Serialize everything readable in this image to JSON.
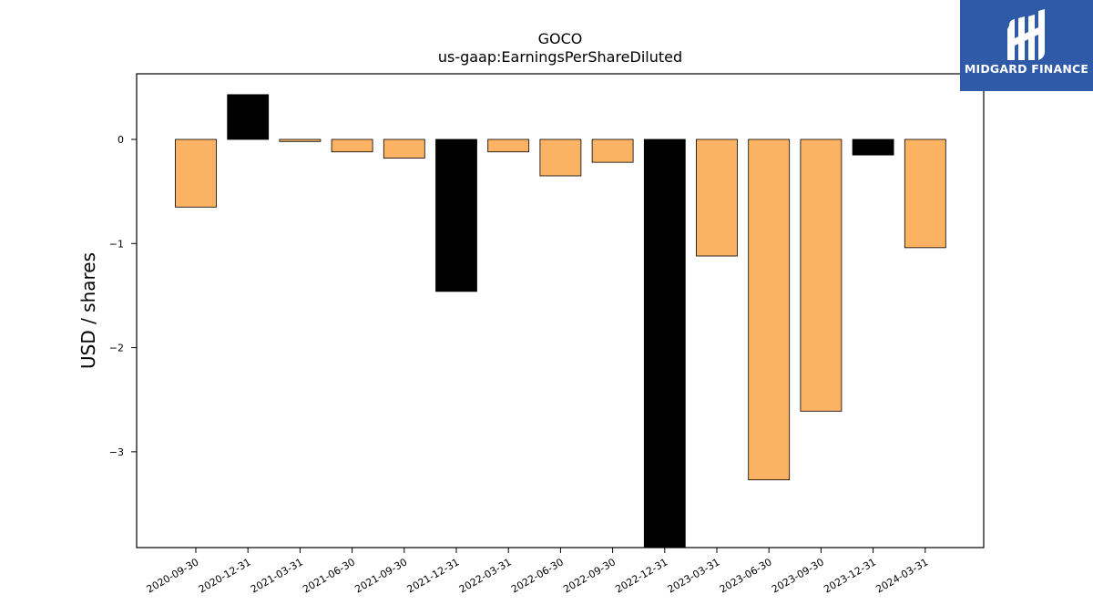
{
  "chart_data": {
    "type": "bar",
    "title": "GOCO",
    "subtitle": "us-gaap:EarningsPerShareDiluted",
    "xlabel": "",
    "ylabel": "USD / shares",
    "categories": [
      "2020-09-30",
      "2020-12-31",
      "2021-03-31",
      "2021-06-30",
      "2021-09-30",
      "2021-12-31",
      "2022-03-31",
      "2022-06-30",
      "2022-09-30",
      "2022-12-31",
      "2023-03-31",
      "2023-06-30",
      "2023-09-30",
      "2023-12-31",
      "2024-03-31"
    ],
    "values": [
      -0.65,
      0.43,
      -0.02,
      -0.12,
      -0.18,
      -1.46,
      -0.12,
      -0.35,
      -0.22,
      -3.92,
      -1.12,
      -3.27,
      -2.61,
      -0.15,
      -1.04
    ],
    "bar_colors": [
      "#fbb363",
      "#000000",
      "#fbb363",
      "#fbb363",
      "#fbb363",
      "#000000",
      "#fbb363",
      "#fbb363",
      "#fbb363",
      "#000000",
      "#fbb363",
      "#fbb363",
      "#fbb363",
      "#000000",
      "#fbb363"
    ],
    "ylim": [
      -3.92,
      0.63
    ],
    "yticks": [
      0,
      -1,
      -2,
      -3
    ],
    "ytick_labels": [
      "0",
      "−1",
      "−2",
      "−3"
    ],
    "grid": false,
    "legend": "none"
  },
  "logo": {
    "text": "MIDGARD FINANCE",
    "background": "#2f5aa8"
  }
}
